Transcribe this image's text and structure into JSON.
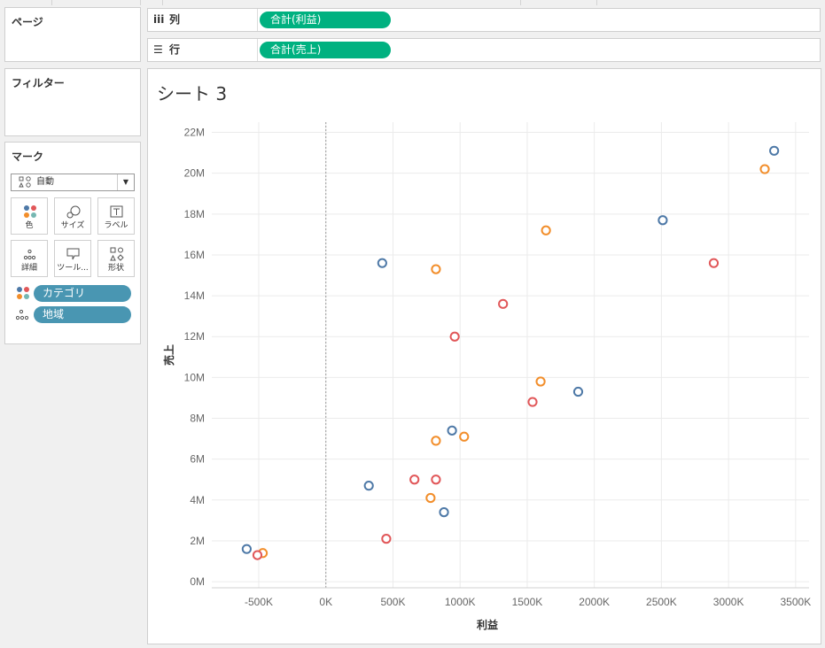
{
  "pages_panel": {
    "title": "ページ"
  },
  "filters_panel": {
    "title": "フィルター"
  },
  "marks_panel": {
    "title": "マーク",
    "mark_type": "自動",
    "buttons": [
      {
        "label": "色",
        "icon": "color-icon"
      },
      {
        "label": "サイズ",
        "icon": "size-icon"
      },
      {
        "label": "ラベル",
        "icon": "label-icon"
      },
      {
        "label": "詳細",
        "icon": "detail-icon"
      },
      {
        "label": "ツール...",
        "icon": "tooltip-icon"
      },
      {
        "label": "形状",
        "icon": "shape-icon"
      }
    ],
    "fields": [
      {
        "name": "カテゴリ",
        "role": "color"
      },
      {
        "name": "地域",
        "role": "detail"
      }
    ]
  },
  "shelves": {
    "columns": {
      "label": "列",
      "pill": "合計(利益)"
    },
    "rows": {
      "label": "行",
      "pill": "合計(売上)"
    }
  },
  "sheet": {
    "title": "シート 3"
  },
  "colors": {
    "accent_green": "#00b180",
    "pill_blue": "#4996b2",
    "series_blue": "#4e79a7",
    "series_orange": "#f28e2b",
    "series_red": "#e15759"
  },
  "chart_data": {
    "type": "scatter",
    "xlabel": "利益",
    "ylabel": "売上",
    "xlim": [
      -850000,
      3600000
    ],
    "ylim": [
      -300000,
      22500000
    ],
    "x_ticks": [
      -500000,
      0,
      500000,
      1000000,
      1500000,
      2000000,
      2500000,
      3000000,
      3500000
    ],
    "x_tick_labels": [
      "-500K",
      "0K",
      "500K",
      "1000K",
      "1500K",
      "2000K",
      "2500K",
      "3000K",
      "3500K"
    ],
    "y_ticks": [
      0,
      2000000,
      4000000,
      6000000,
      8000000,
      10000000,
      12000000,
      14000000,
      16000000,
      18000000,
      20000000,
      22000000
    ],
    "y_tick_labels": [
      "0M",
      "2M",
      "4M",
      "6M",
      "8M",
      "10M",
      "12M",
      "14M",
      "16M",
      "18M",
      "20M",
      "22M"
    ],
    "grid": true,
    "marker": "hollow-circle",
    "series": [
      {
        "color": "#4e79a7",
        "points": [
          [
            -590000,
            1600000
          ],
          [
            420000,
            15600000
          ],
          [
            320000,
            4700000
          ],
          [
            940000,
            7400000
          ],
          [
            880000,
            3400000
          ],
          [
            1880000,
            9300000
          ],
          [
            2510000,
            17700000
          ],
          [
            3340000,
            21100000
          ]
        ]
      },
      {
        "color": "#f28e2b",
        "points": [
          [
            -470000,
            1400000
          ],
          [
            820000,
            15300000
          ],
          [
            1640000,
            17200000
          ],
          [
            1600000,
            9800000
          ],
          [
            1030000,
            7100000
          ],
          [
            820000,
            6900000
          ],
          [
            780000,
            4100000
          ],
          [
            3270000,
            20200000
          ]
        ]
      },
      {
        "color": "#e15759",
        "points": [
          [
            -510000,
            1300000
          ],
          [
            450000,
            2100000
          ],
          [
            660000,
            5000000
          ],
          [
            820000,
            5000000
          ],
          [
            960000,
            12000000
          ],
          [
            1320000,
            13600000
          ],
          [
            1540000,
            8800000
          ],
          [
            2890000,
            15600000
          ]
        ]
      }
    ]
  }
}
